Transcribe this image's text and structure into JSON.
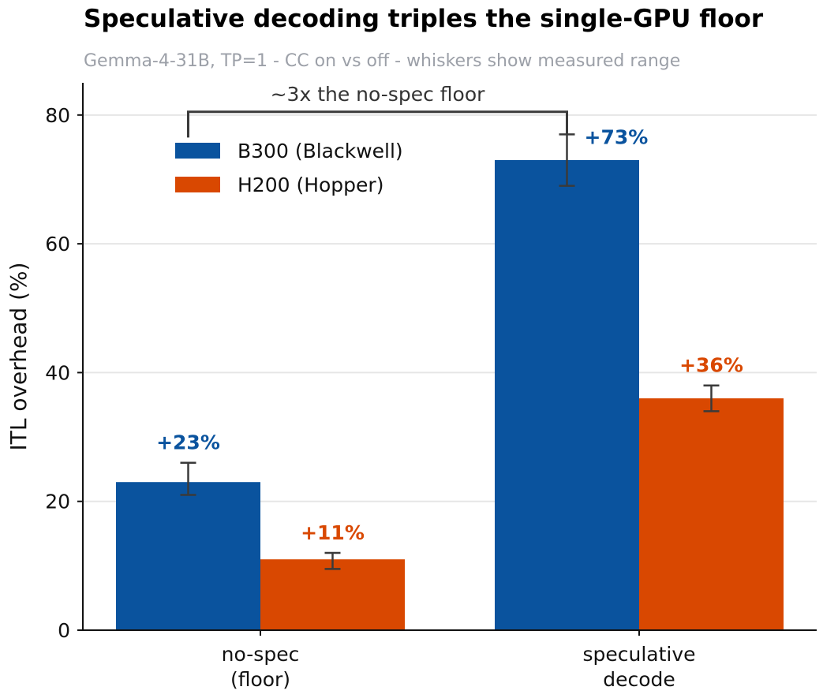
{
  "chart_data": {
    "type": "bar",
    "title": "Speculative decoding triples the single-GPU floor",
    "subtitle": "Gemma-4-31B, TP=1  -  CC on vs off  -  whiskers show measured range",
    "ylabel": "ITL overhead (%)",
    "xlabel": "",
    "categories": [
      [
        "no-spec",
        "(floor)"
      ],
      [
        "speculative",
        "decode"
      ]
    ],
    "ylim": [
      0,
      85
    ],
    "yticks": [
      0,
      20,
      40,
      60,
      80
    ],
    "grid": "horizontal",
    "legend_position": "upper-left",
    "series": [
      {
        "name": "B300 (Blackwell)",
        "color": "#0a539e",
        "values": [
          23,
          73
        ],
        "range_low": [
          21,
          69
        ],
        "range_high": [
          26,
          77
        ],
        "labels": [
          "+23%",
          "+73%"
        ]
      },
      {
        "name": "H200 (Hopper)",
        "color": "#d94801",
        "values": [
          11,
          36
        ],
        "range_low": [
          9.5,
          34
        ],
        "range_high": [
          12,
          38
        ],
        "labels": [
          "+11%",
          "+36%"
        ]
      }
    ],
    "annotation": {
      "text": "~3x the no-spec floor",
      "connects": [
        "no-spec (floor) / B300 (Blackwell)",
        "speculative decode / B300 (Blackwell)"
      ]
    }
  }
}
